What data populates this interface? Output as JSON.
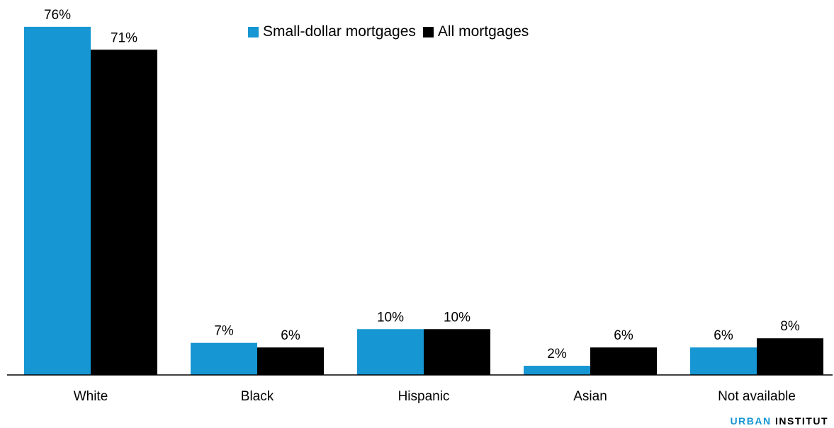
{
  "chart_data": {
    "type": "bar",
    "categories": [
      "White",
      "Black",
      "Hispanic",
      "Asian",
      "Not available"
    ],
    "series": [
      {
        "name": "Small-dollar mortgages",
        "values": [
          76,
          7,
          10,
          2,
          6
        ],
        "labels": [
          "76%",
          "7%",
          "10%",
          "2%",
          "6%"
        ],
        "color": "#1696d2"
      },
      {
        "name": "All mortgages",
        "values": [
          71,
          6,
          10,
          6,
          8
        ],
        "labels": [
          "71%",
          "6%",
          "10%",
          "6%",
          "8%"
        ],
        "color": "#000000"
      }
    ],
    "value_unit": "%",
    "ylim": [
      0,
      80
    ],
    "grid": false,
    "legend_position": "top-center"
  },
  "branding": {
    "part1": "URBAN",
    "part2": "INSTITUT"
  }
}
